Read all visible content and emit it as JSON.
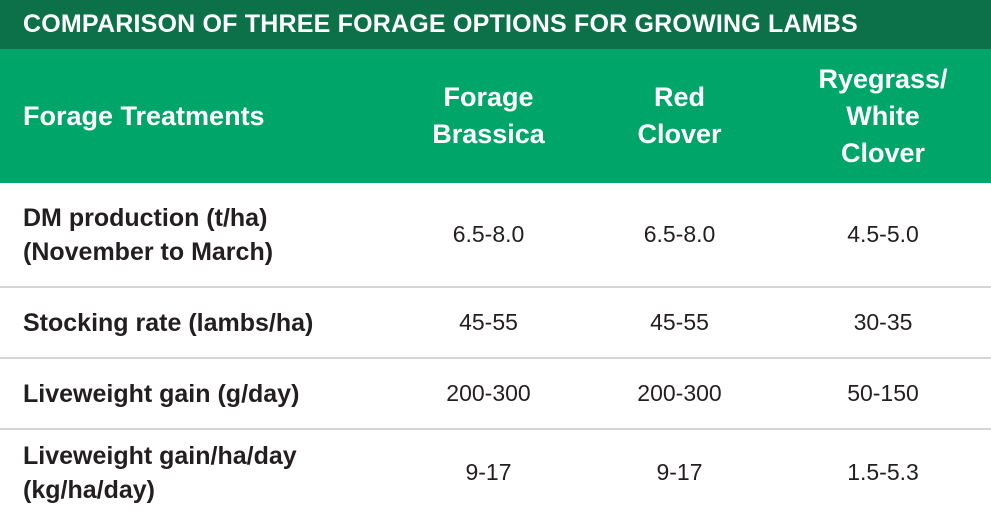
{
  "title": "COMPARISON OF THREE FORAGE OPTIONS FOR GROWING LAMBS",
  "header": {
    "label": "Forage Treatments",
    "columns": [
      [
        "Forage",
        "Brassica"
      ],
      [
        "Red",
        "Clover"
      ],
      [
        "Ryegrass/",
        "White",
        "Clover"
      ]
    ]
  },
  "rows": [
    {
      "label": [
        "DM production (t/ha)",
        "(November to March)"
      ],
      "values": [
        "6.5-8.0",
        "6.5-8.0",
        "4.5-5.0"
      ]
    },
    {
      "label": [
        "Stocking rate (lambs/ha)"
      ],
      "values": [
        "45-55",
        "45-55",
        "30-35"
      ]
    },
    {
      "label": [
        "Liveweight gain (g/day)"
      ],
      "values": [
        "200-300",
        "200-300",
        "50-150"
      ]
    },
    {
      "label": [
        "Liveweight gain/ha/day",
        "(kg/ha/day)"
      ],
      "values": [
        "9-17",
        "9-17",
        "1.5-5.3"
      ]
    }
  ],
  "colors": {
    "title_bg": "#0c7048",
    "header_bg": "#00a569",
    "divider": "#d6d6d6",
    "text": "#231f20"
  }
}
